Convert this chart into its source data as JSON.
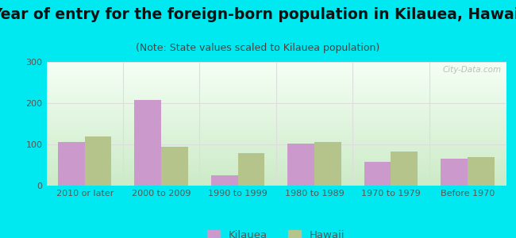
{
  "title": "Year of entry for the foreign-born population in Kilauea, Hawaii",
  "subtitle": "(Note: State values scaled to Kilauea population)",
  "categories": [
    "2010 or later",
    "2000 to 2009",
    "1990 to 1999",
    "1980 to 1989",
    "1970 to 1979",
    "Before 1970"
  ],
  "kilauea_values": [
    105,
    208,
    25,
    102,
    57,
    65
  ],
  "hawaii_values": [
    120,
    95,
    78,
    105,
    82,
    70
  ],
  "kilauea_color": "#cc99cc",
  "hawaii_color": "#b5c48a",
  "ylim": [
    0,
    300
  ],
  "yticks": [
    0,
    100,
    200,
    300
  ],
  "background_color": "#00e8f0",
  "plot_bg_topleft": "#d4eedc",
  "plot_bg_topright": "#ffffff",
  "plot_bg_bottomleft": "#c8e8c8",
  "plot_bg_bottomright": "#eaf4ea",
  "bar_width": 0.35,
  "title_fontsize": 13.5,
  "subtitle_fontsize": 9,
  "legend_kilauea": "Kilauea",
  "legend_hawaii": "Hawaii",
  "watermark": "City-Data.com",
  "title_color": "#111111",
  "subtitle_color": "#444444",
  "tick_color": "#555555",
  "grid_color": "#dddddd"
}
